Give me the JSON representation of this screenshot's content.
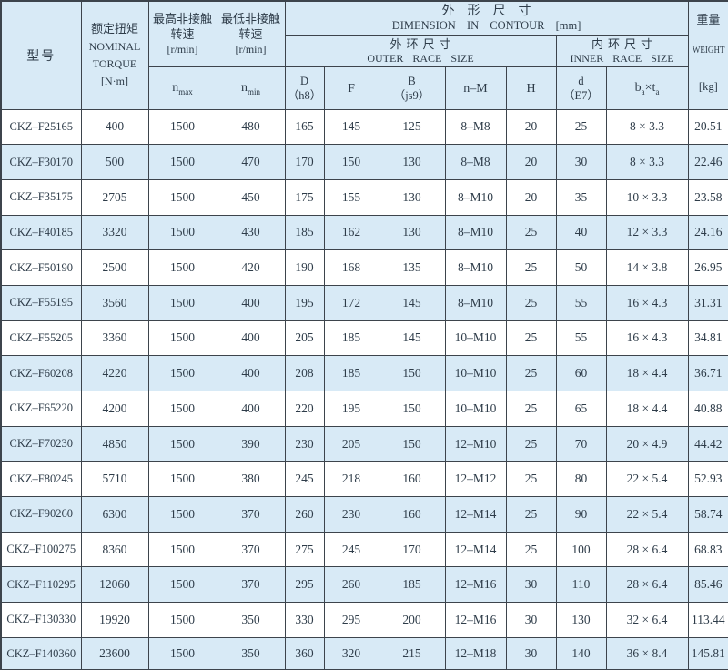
{
  "colors": {
    "stripe_blue": "#d8eaf6",
    "border": "#3d444c",
    "text": "#2e3c49"
  },
  "table": {
    "header": {
      "model": "型号",
      "torque": {
        "zh": "额定扭矩",
        "en1": "NOMINAL",
        "en2": "TORQUE",
        "unit": "[N·m]"
      },
      "nmax": {
        "zh1": "最高非接触",
        "zh2": "转速",
        "unit": "[r/min]",
        "sym": "n",
        "sub": "max"
      },
      "nmin": {
        "zh1": "最低非接触",
        "zh2": "转速",
        "unit": "[r/min]",
        "sym": "n",
        "sub": "min"
      },
      "dimension": {
        "zh": "外形尺寸",
        "en": "DIMENSION IN CONTOUR [mm]"
      },
      "outer_race": {
        "zh": "外环尺寸",
        "en": "OUTER RACE SIZE"
      },
      "inner_race": {
        "zh": "内环尺寸",
        "en": "INNER RACE SIZE"
      },
      "col_D": {
        "l1": "D",
        "l2": "（h8）"
      },
      "col_F": "F",
      "col_B": {
        "l1": "B",
        "l2": "（js9）"
      },
      "col_nM": "n–M",
      "col_H": "H",
      "col_d": {
        "l1": "d",
        "l2": "（E7）"
      },
      "col_bt": {
        "b": "b",
        "b_sub": "a",
        "times": "×",
        "t": "t",
        "t_sub": "a"
      },
      "weight": {
        "zh": "重量",
        "en": "WEIGHT",
        "unit": "[kg]"
      }
    },
    "rows": [
      [
        "CKZ–F25165",
        "400",
        "1500",
        "480",
        "165",
        "145",
        "125",
        "8–M8",
        "20",
        "25",
        "8 × 3.3",
        "20.51"
      ],
      [
        "CKZ–F30170",
        "500",
        "1500",
        "470",
        "170",
        "150",
        "130",
        "8–M8",
        "20",
        "30",
        "8 × 3.3",
        "22.46"
      ],
      [
        "CKZ–F35175",
        "2705",
        "1500",
        "450",
        "175",
        "155",
        "130",
        "8–M10",
        "20",
        "35",
        "10 × 3.3",
        "23.58"
      ],
      [
        "CKZ–F40185",
        "3320",
        "1500",
        "430",
        "185",
        "162",
        "130",
        "8–M10",
        "25",
        "40",
        "12 × 3.3",
        "24.16"
      ],
      [
        "CKZ–F50190",
        "2500",
        "1500",
        "420",
        "190",
        "168",
        "135",
        "8–M10",
        "25",
        "50",
        "14 × 3.8",
        "26.95"
      ],
      [
        "CKZ–F55195",
        "3560",
        "1500",
        "400",
        "195",
        "172",
        "145",
        "8–M10",
        "25",
        "55",
        "16 × 4.3",
        "31.31"
      ],
      [
        "CKZ–F55205",
        "3360",
        "1500",
        "400",
        "205",
        "185",
        "145",
        "10–M10",
        "25",
        "55",
        "16 × 4.3",
        "34.81"
      ],
      [
        "CKZ–F60208",
        "4220",
        "1500",
        "400",
        "208",
        "185",
        "150",
        "10–M10",
        "25",
        "60",
        "18 × 4.4",
        "36.71"
      ],
      [
        "CKZ–F65220",
        "4200",
        "1500",
        "400",
        "220",
        "195",
        "150",
        "10–M10",
        "25",
        "65",
        "18 × 4.4",
        "40.88"
      ],
      [
        "CKZ–F70230",
        "4850",
        "1500",
        "390",
        "230",
        "205",
        "150",
        "12–M10",
        "25",
        "70",
        "20 × 4.9",
        "44.42"
      ],
      [
        "CKZ–F80245",
        "5710",
        "1500",
        "380",
        "245",
        "218",
        "160",
        "12–M12",
        "25",
        "80",
        "22 × 5.4",
        "52.93"
      ],
      [
        "CKZ–F90260",
        "6300",
        "1500",
        "370",
        "260",
        "230",
        "160",
        "12–M14",
        "25",
        "90",
        "22 × 5.4",
        "58.74"
      ],
      [
        "CKZ–F100275",
        "8360",
        "1500",
        "370",
        "275",
        "245",
        "170",
        "12–M14",
        "25",
        "100",
        "28 × 6.4",
        "68.83"
      ],
      [
        "CKZ–F110295",
        "12060",
        "1500",
        "370",
        "295",
        "260",
        "185",
        "12–M16",
        "30",
        "110",
        "28 × 6.4",
        "85.46"
      ],
      [
        "CKZ–F130330",
        "19920",
        "1500",
        "350",
        "330",
        "295",
        "200",
        "12–M16",
        "30",
        "130",
        "32 × 6.4",
        "113.44"
      ],
      [
        "CKZ–F140360",
        "23600",
        "1500",
        "350",
        "360",
        "320",
        "215",
        "12–M18",
        "30",
        "140",
        "36 × 8.4",
        "145.81"
      ]
    ]
  }
}
